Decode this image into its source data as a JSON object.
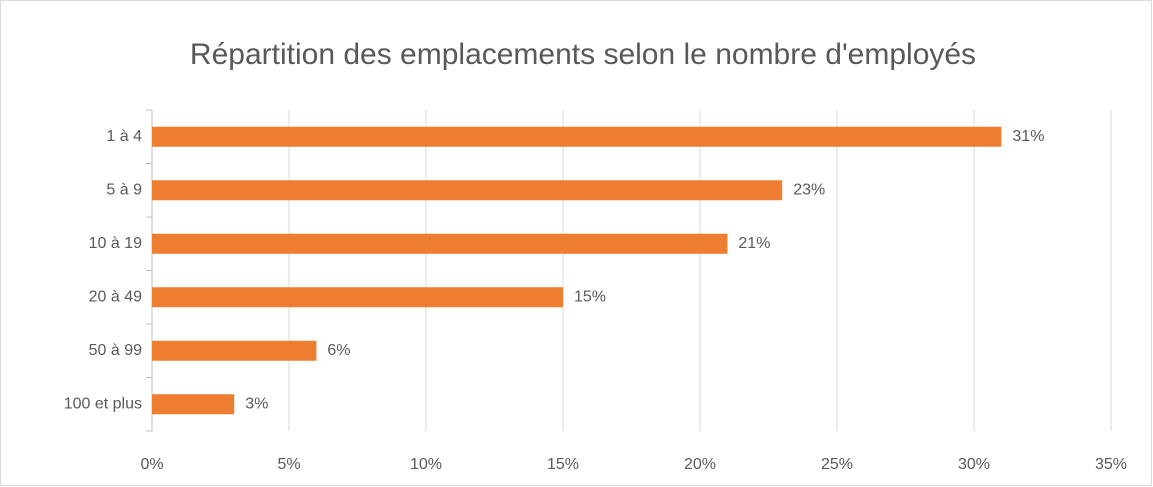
{
  "chart_data": {
    "type": "bar",
    "orientation": "horizontal",
    "title": "Répartition des emplacements selon le nombre d'employés",
    "categories": [
      "1 à 4",
      "5 à 9",
      "10 à 19",
      "20 à 49",
      "50 à 99",
      "100 et plus"
    ],
    "values": [
      31,
      23,
      21,
      15,
      6,
      3
    ],
    "value_labels": [
      "31%",
      "23%",
      "21%",
      "15%",
      "6%",
      "3%"
    ],
    "color": "#ed7d31",
    "xlim": [
      0,
      35
    ],
    "xticks": [
      {
        "value": 0,
        "label": "0%"
      },
      {
        "value": 5,
        "label": "5%"
      },
      {
        "value": 10,
        "label": "10%"
      },
      {
        "value": 15,
        "label": "15%"
      },
      {
        "value": 20,
        "label": "20%"
      },
      {
        "value": 25,
        "label": "25%"
      },
      {
        "value": 30,
        "label": "30%"
      },
      {
        "value": 35,
        "label": "35%"
      }
    ],
    "grid": true
  }
}
